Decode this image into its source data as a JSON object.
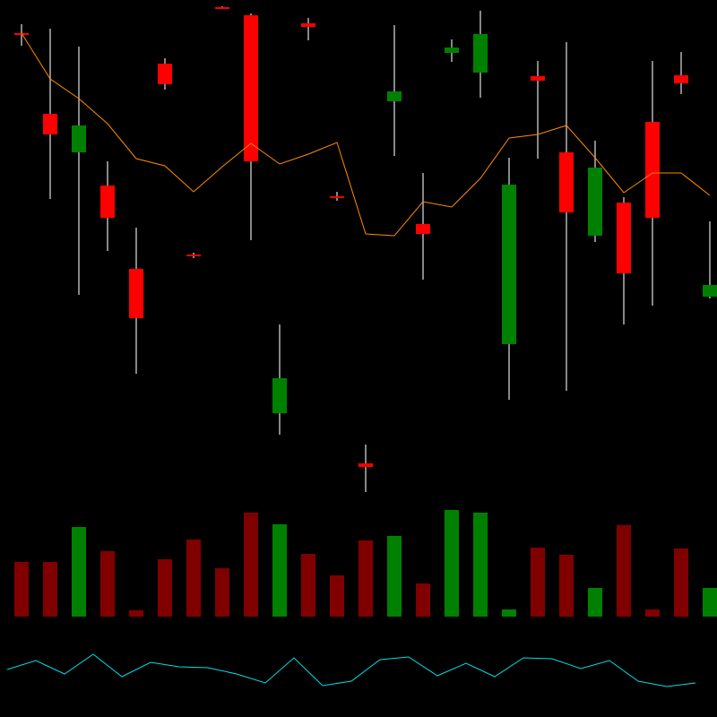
{
  "chart_data": [
    {
      "type": "candlestick",
      "ylim": [
        0,
        560
      ],
      "up_color": "#008000",
      "down_color": "#ff0000",
      "wick_color": "#b4b4b4",
      "open": [
        523,
        433,
        390,
        353,
        260,
        489,
        276,
        552,
        543,
        99,
        534,
        341,
        43,
        447,
        310,
        501,
        479,
        176,
        475,
        390,
        297,
        334,
        424,
        476,
        229
      ],
      "high": [
        533,
        528,
        508,
        380,
        306,
        495,
        278,
        553,
        545,
        198,
        540,
        346,
        64,
        532,
        367,
        516,
        548,
        384,
        492,
        513,
        403,
        340,
        492,
        502,
        313
      ],
      "low": [
        509,
        338,
        231,
        280,
        143,
        460,
        272,
        551,
        292,
        75,
        515,
        336,
        11,
        386,
        248,
        491,
        451,
        114,
        383,
        124,
        290,
        198,
        219,
        455,
        227
      ],
      "close": [
        522,
        410,
        420,
        317,
        205,
        466,
        274,
        551,
        380,
        138,
        530,
        339,
        39,
        458,
        299,
        507,
        522,
        354,
        470,
        323,
        373,
        255,
        317,
        467,
        242
      ],
      "series": [
        {
          "color": "#ff8c00",
          "values": [
            523,
            472,
            450,
            422,
            383,
            375,
            346,
            374,
            400,
            377,
            388,
            401,
            299,
            297,
            335,
            329,
            361,
            406,
            410,
            420,
            384,
            345,
            367,
            367,
            342
          ]
        }
      ]
    },
    {
      "type": "bar",
      "ylim": [
        0,
        128
      ],
      "up_color": "#008000",
      "down_color": "#800000",
      "values": [
        61,
        61,
        100,
        73,
        7,
        64,
        86,
        54,
        116,
        103,
        70,
        46,
        85,
        90,
        37,
        119,
        116,
        8,
        77,
        69,
        32,
        102,
        8,
        76,
        32
      ]
    },
    {
      "type": "line",
      "ylim": [
        0,
        100
      ],
      "color": "#00e0e8",
      "values": [
        53,
        63,
        48,
        70,
        45,
        61,
        56,
        55,
        48,
        38,
        66,
        35,
        40,
        64,
        67,
        46,
        60,
        45,
        66,
        65,
        54,
        63,
        40,
        34,
        38
      ]
    }
  ]
}
